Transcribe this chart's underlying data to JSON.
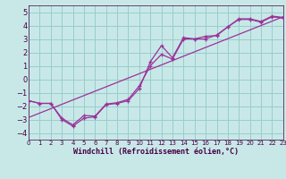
{
  "bg_color": "#c8e8e8",
  "grid_color": "#99cccc",
  "line_color": "#993399",
  "xlim": [
    0,
    23
  ],
  "ylim": [
    -4.5,
    5.5
  ],
  "yticks": [
    -4,
    -3,
    -2,
    -1,
    0,
    1,
    2,
    3,
    4,
    5
  ],
  "xticks": [
    0,
    1,
    2,
    3,
    4,
    5,
    6,
    7,
    8,
    9,
    10,
    11,
    12,
    13,
    14,
    15,
    16,
    17,
    18,
    19,
    20,
    21,
    22,
    23
  ],
  "xlabel": "Windchill (Refroidissement éolien,°C)",
  "series1_x": [
    0,
    1,
    2,
    3,
    4,
    5,
    6,
    7,
    8,
    9,
    10,
    11,
    12,
    13,
    14,
    15,
    16,
    17,
    18,
    19,
    20,
    21,
    22,
    23
  ],
  "series1_y": [
    -1.6,
    -1.8,
    -1.8,
    -3.0,
    -3.5,
    -2.9,
    -2.8,
    -1.9,
    -1.8,
    -1.6,
    -0.7,
    1.3,
    2.5,
    1.6,
    3.1,
    3.0,
    3.0,
    3.3,
    3.9,
    4.5,
    4.5,
    4.3,
    4.7,
    4.6
  ],
  "series2_x": [
    0,
    1,
    2,
    3,
    4,
    5,
    6,
    7,
    8,
    9,
    10,
    11,
    12,
    13,
    14,
    15,
    16,
    17,
    18,
    19,
    20,
    21,
    22,
    23
  ],
  "series2_y": [
    -1.6,
    -1.8,
    -1.8,
    -2.9,
    -3.4,
    -2.7,
    -2.75,
    -1.85,
    -1.75,
    -1.5,
    -0.5,
    1.0,
    1.85,
    1.5,
    3.0,
    3.0,
    3.2,
    3.25,
    3.9,
    4.45,
    4.45,
    4.25,
    4.65,
    4.55
  ],
  "trend_x": [
    0,
    23
  ],
  "trend_y": [
    -2.85,
    4.65
  ]
}
